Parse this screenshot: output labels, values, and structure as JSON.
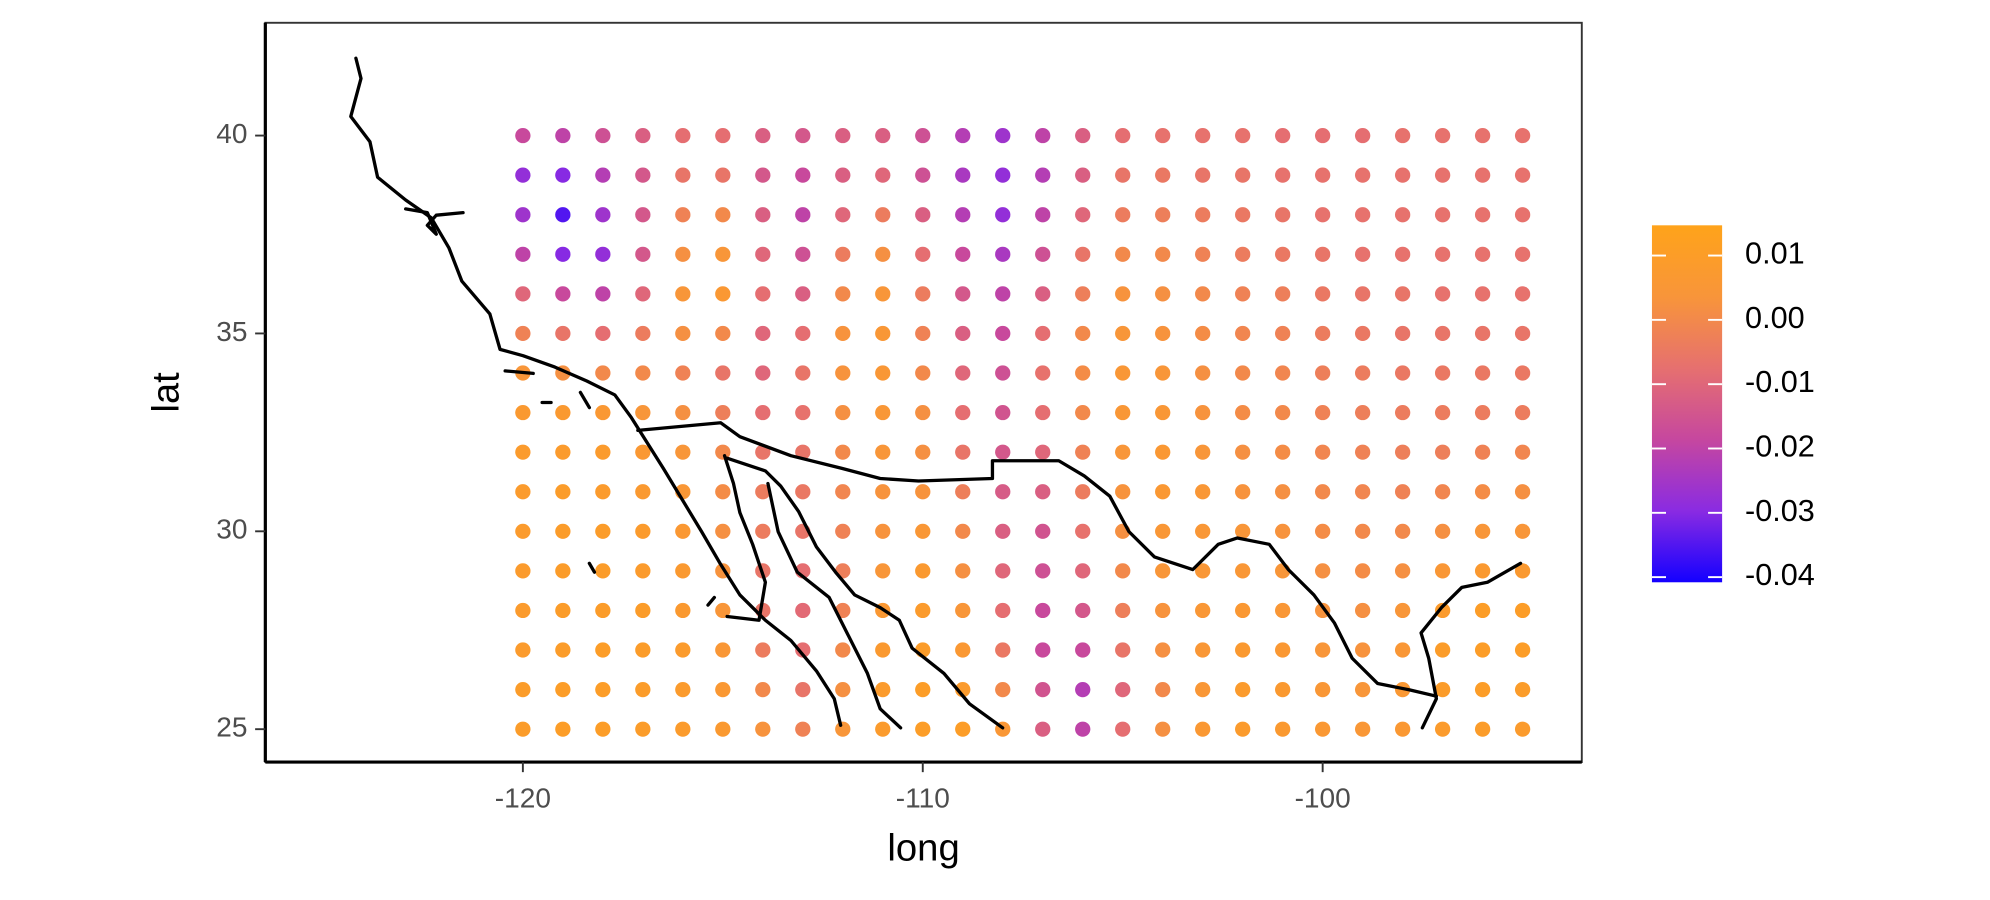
{
  "chart_data": {
    "type": "scatter",
    "x_label": "long",
    "y_label": "lat",
    "xlim": [
      -126.44,
      -93.52
    ],
    "ylim": [
      24.17,
      42.85
    ],
    "xticks": [
      -120,
      -110,
      -100
    ],
    "yticks": [
      25,
      30,
      35,
      40
    ],
    "x": [
      -120,
      -119,
      -118,
      -117,
      -116,
      -115,
      -114,
      -113,
      -112,
      -111,
      -110,
      -109,
      -108,
      -107,
      -106,
      -105,
      -104,
      -103,
      -102,
      -101,
      -100,
      -99,
      -98,
      -97,
      -96,
      -95
    ],
    "y": [
      25,
      26,
      27,
      28,
      29,
      30,
      31,
      32,
      33,
      34,
      35,
      36,
      37,
      38,
      39,
      40
    ],
    "values": [
      [
        0.009,
        0.01,
        0.01,
        0.009,
        0.008,
        0.007,
        0.003,
        -0.002,
        0.004,
        0.008,
        0.01,
        0.01,
        0.005,
        -0.012,
        -0.02,
        -0.008,
        0.002,
        0.006,
        0.008,
        0.007,
        0.006,
        0.005,
        0.006,
        0.008,
        0.009,
        0.008
      ],
      [
        0.009,
        0.01,
        0.01,
        0.009,
        0.008,
        0.006,
        0,
        -0.006,
        0.002,
        0.008,
        0.01,
        0.008,
        0,
        -0.015,
        -0.022,
        -0.01,
        0,
        0.005,
        0.008,
        0.007,
        0.005,
        0.004,
        0.006,
        0.009,
        0.01,
        0.009
      ],
      [
        0.008,
        0.009,
        0.01,
        0.009,
        0.008,
        0.005,
        -0.004,
        -0.008,
        0,
        0.007,
        0.009,
        0.006,
        -0.005,
        -0.018,
        -0.018,
        -0.006,
        0.002,
        0.005,
        0.007,
        0.006,
        0.004,
        0.003,
        0.005,
        0.009,
        0.01,
        0.01
      ],
      [
        0.008,
        0.009,
        0.009,
        0.009,
        0.007,
        0.004,
        -0.006,
        -0.009,
        -0.002,
        0.006,
        0.008,
        0.004,
        -0.008,
        -0.018,
        -0.014,
        -0.003,
        0.003,
        0.005,
        0.006,
        0.005,
        0.003,
        0.002,
        0.004,
        0.008,
        0.01,
        0.01
      ],
      [
        0.008,
        0.009,
        0.009,
        0.008,
        0.007,
        0.003,
        -0.006,
        -0.008,
        -0.003,
        0.004,
        0.007,
        0.002,
        -0.01,
        -0.016,
        -0.01,
        0,
        0.004,
        0.005,
        0.005,
        0.004,
        0.002,
        0.001,
        0.002,
        0.005,
        0.007,
        0.007
      ],
      [
        0.008,
        0.009,
        0.009,
        0.008,
        0.006,
        0.002,
        -0.004,
        -0.006,
        -0.002,
        0.003,
        0.005,
        0,
        -0.012,
        -0.015,
        -0.007,
        0.002,
        0.005,
        0.005,
        0.004,
        0.003,
        0.001,
        0,
        0,
        0.002,
        0.004,
        0.004
      ],
      [
        0.008,
        0.009,
        0.008,
        0.007,
        0.005,
        0.001,
        -0.004,
        -0.005,
        -0.001,
        0.003,
        0.003,
        -0.003,
        -0.013,
        -0.012,
        -0.004,
        0.003,
        0.006,
        0.005,
        0.003,
        0.002,
        0,
        -0.001,
        -0.002,
        -0.001,
        0.001,
        0.002
      ],
      [
        0.008,
        0.008,
        0.008,
        0.006,
        0.004,
        0,
        -0.006,
        -0.006,
        0,
        0.004,
        0.002,
        -0.006,
        -0.014,
        -0.01,
        -0.002,
        0.004,
        0.006,
        0.004,
        0.002,
        0.001,
        -0.001,
        -0.002,
        -0.003,
        -0.003,
        -0.002,
        -0.001
      ],
      [
        0.007,
        0.007,
        0.006,
        0.004,
        0.002,
        -0.003,
        -0.008,
        -0.007,
        0.002,
        0.005,
        0.002,
        -0.008,
        -0.015,
        -0.008,
        0,
        0.005,
        0.005,
        0.003,
        0.001,
        0,
        -0.002,
        -0.003,
        -0.004,
        -0.004,
        -0.004,
        -0.004
      ],
      [
        0.004,
        0.002,
        0,
        0,
        -0.002,
        -0.006,
        -0.01,
        -0.006,
        0.003,
        0.005,
        0,
        -0.01,
        -0.016,
        -0.007,
        0.001,
        0.005,
        0.004,
        0.002,
        0,
        -0.001,
        -0.003,
        -0.004,
        -0.005,
        -0.005,
        -0.005,
        -0.005
      ],
      [
        -0.002,
        -0.006,
        -0.008,
        -0.004,
        0.002,
        0,
        -0.01,
        -0.008,
        0.003,
        0.005,
        -0.002,
        -0.012,
        -0.018,
        -0.008,
        0,
        0.004,
        0.003,
        0.001,
        -0.001,
        -0.002,
        -0.004,
        -0.005,
        -0.006,
        -0.006,
        -0.006,
        -0.006
      ],
      [
        -0.01,
        -0.018,
        -0.02,
        -0.01,
        0.004,
        0.006,
        -0.008,
        -0.012,
        0,
        0.004,
        -0.004,
        -0.014,
        -0.02,
        -0.012,
        -0.003,
        0.003,
        0.002,
        0,
        -0.002,
        -0.003,
        -0.005,
        -0.006,
        -0.006,
        -0.007,
        -0.007,
        -0.007
      ],
      [
        -0.02,
        -0.03,
        -0.028,
        -0.014,
        0.002,
        0.004,
        -0.01,
        -0.016,
        -0.004,
        0.002,
        -0.008,
        -0.018,
        -0.024,
        -0.016,
        -0.006,
        0,
        0,
        -0.002,
        -0.004,
        -0.005,
        -0.006,
        -0.007,
        -0.007,
        -0.007,
        -0.007,
        -0.007
      ],
      [
        -0.026,
        -0.035,
        -0.026,
        -0.014,
        -0.002,
        0,
        -0.012,
        -0.02,
        -0.01,
        -0.004,
        -0.012,
        -0.022,
        -0.028,
        -0.02,
        -0.01,
        -0.004,
        -0.003,
        -0.004,
        -0.005,
        -0.006,
        -0.007,
        -0.007,
        -0.007,
        -0.007,
        -0.007,
        -0.007
      ],
      [
        -0.028,
        -0.03,
        -0.022,
        -0.014,
        -0.006,
        -0.006,
        -0.014,
        -0.018,
        -0.012,
        -0.01,
        -0.016,
        -0.024,
        -0.028,
        -0.022,
        -0.012,
        -0.006,
        -0.005,
        -0.006,
        -0.006,
        -0.007,
        -0.007,
        -0.007,
        -0.007,
        -0.007,
        -0.007,
        -0.007
      ],
      [
        -0.018,
        -0.02,
        -0.016,
        -0.012,
        -0.008,
        -0.008,
        -0.012,
        -0.014,
        -0.012,
        -0.012,
        -0.016,
        -0.022,
        -0.026,
        -0.02,
        -0.012,
        -0.008,
        -0.007,
        -0.007,
        -0.007,
        -0.008,
        -0.008,
        -0.008,
        -0.007,
        -0.007,
        -0.007,
        -0.007
      ]
    ],
    "colorscale": [
      "#1400ff",
      "#8a2be2",
      "#c6479f",
      "#e6706f",
      "#f8953a",
      "#ffa31a"
    ],
    "clim": [
      -0.0408,
      0.0147
    ],
    "cticks": [
      0.01,
      {
        "value": 0,
        "label": "0.00"
      },
      -0.01,
      -0.02,
      -0.03,
      -0.04
    ]
  }
}
